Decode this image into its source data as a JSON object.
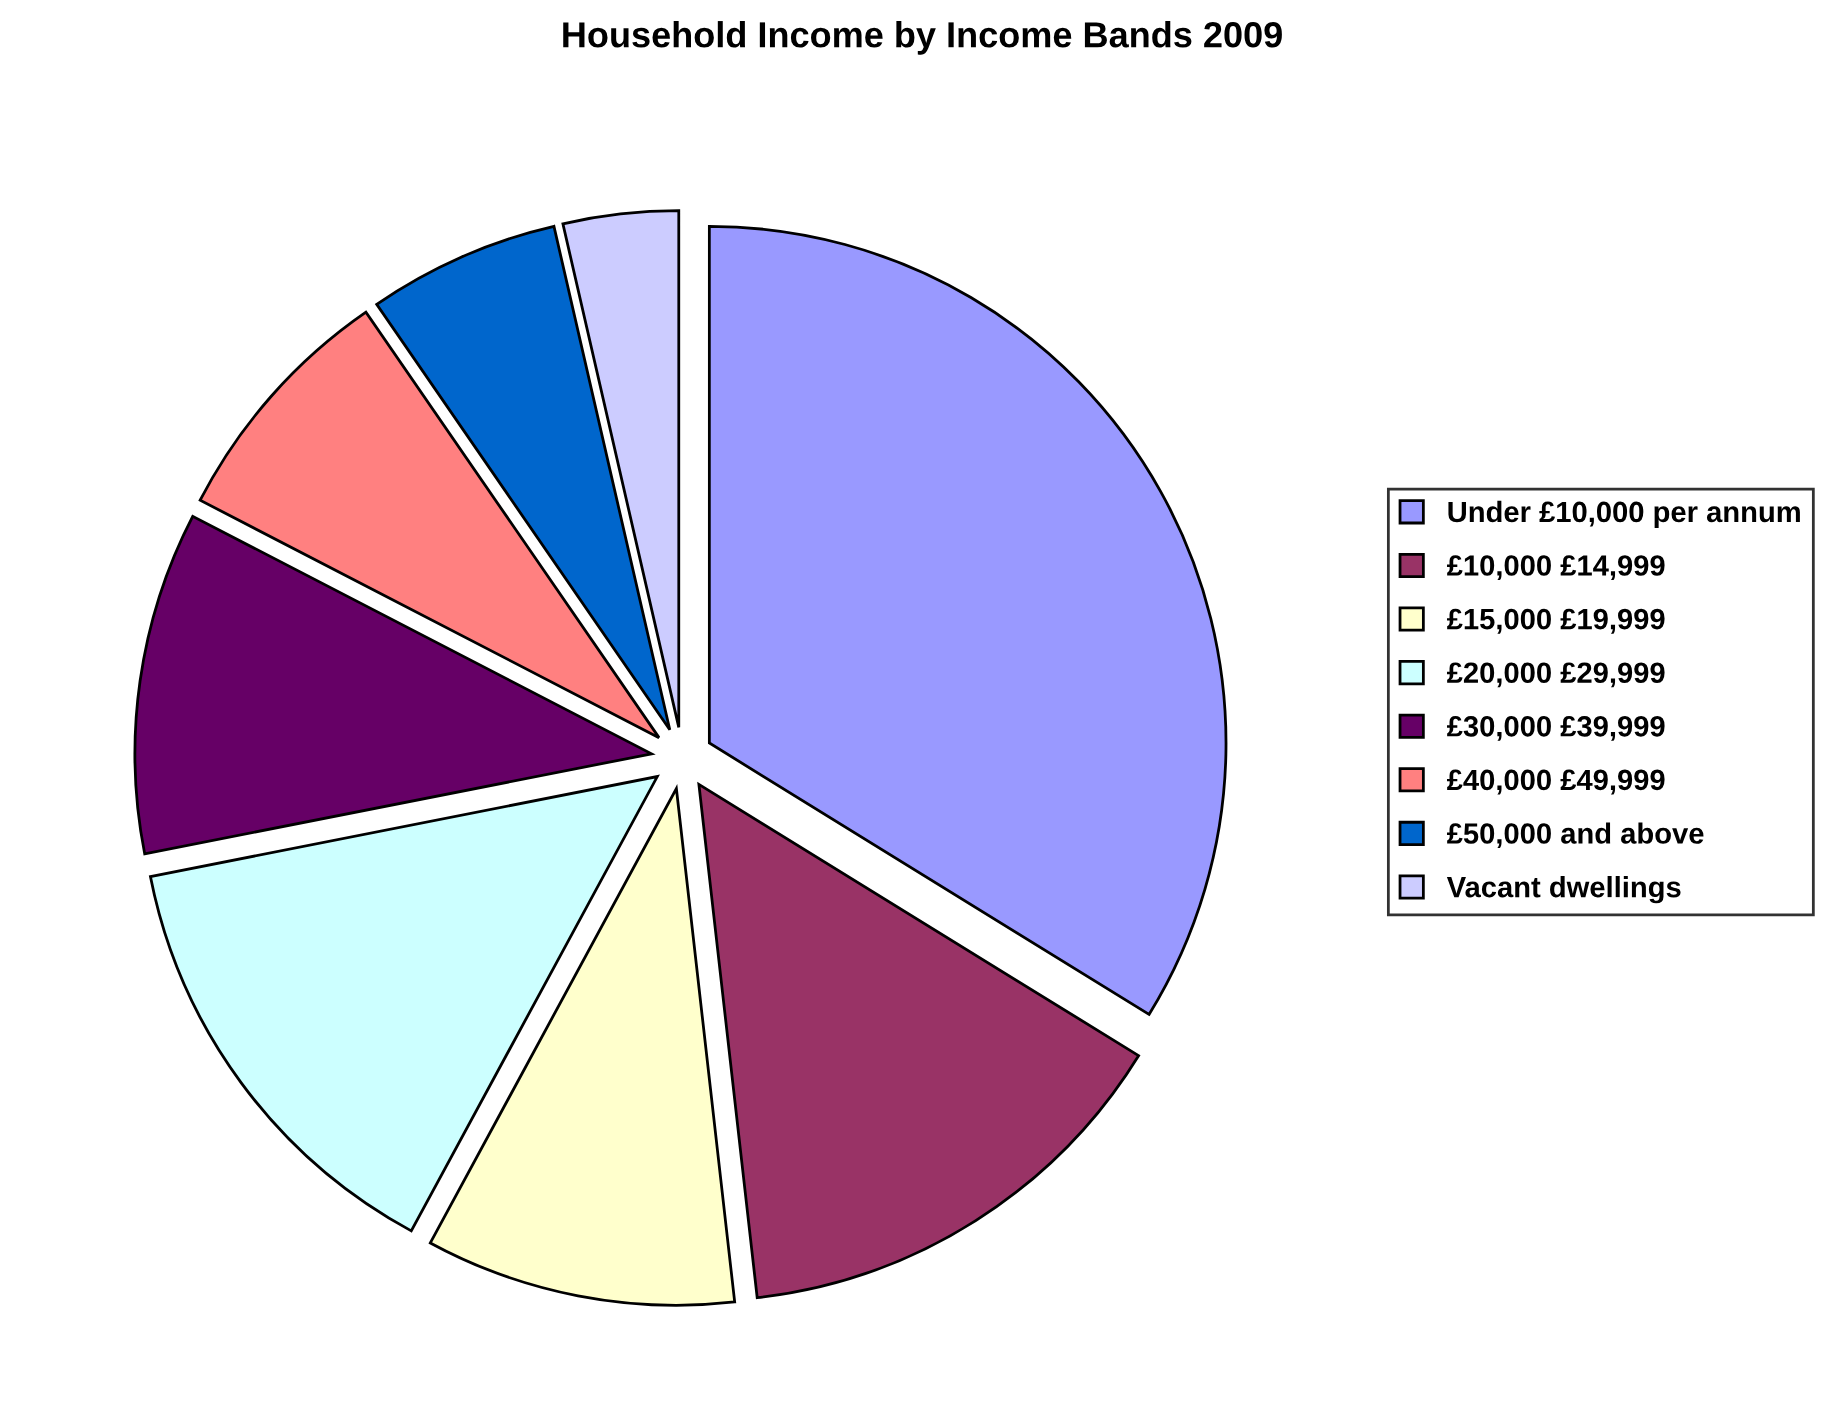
{
  "chart_data": {
    "type": "pie",
    "title": "Household Income by Income Bands 2009",
    "categories": [
      "Under £10,000 per annum",
      "£10,000 £14,999",
      "£15,000 £19,999",
      "£20,000 £29,999",
      "£30,000 £39,999",
      "£40,000 £49,999",
      "£50,000 and above",
      "Vacant dwellings"
    ],
    "values": [
      33.8,
      14.4,
      9.7,
      14.0,
      10.7,
      7.8,
      6.0,
      3.6
    ],
    "colors": [
      "#9999ff",
      "#993366",
      "#ffffcc",
      "#ccffff",
      "#660066",
      "#ff8080",
      "#0066cc",
      "#ccccff"
    ],
    "legend": "right"
  }
}
